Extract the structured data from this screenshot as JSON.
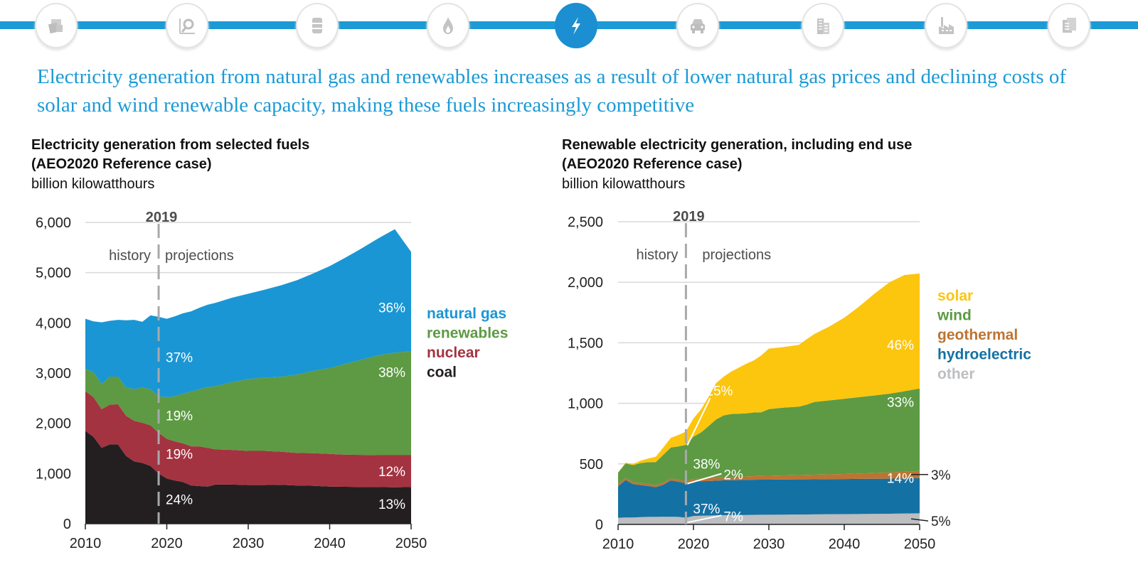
{
  "nav": {
    "icons": [
      {
        "name": "documents-icon",
        "active": false
      },
      {
        "name": "magnifier-chart-icon",
        "active": false
      },
      {
        "name": "oil-barrel-icon",
        "active": false
      },
      {
        "name": "flame-icon",
        "active": false
      },
      {
        "name": "lightning-bolt-icon",
        "active": true
      },
      {
        "name": "car-icon",
        "active": false
      },
      {
        "name": "buildings-icon",
        "active": false
      },
      {
        "name": "factory-icon",
        "active": false
      },
      {
        "name": "report-pages-icon",
        "active": false
      }
    ],
    "accent_color": "#1b9ad6"
  },
  "headline": "Electricity generation from natural gas and renewables increases as a result of lower natural gas prices and declining costs of solar and wind renewable capacity, making these fuels increasingly competitive",
  "chart_data": [
    {
      "type": "area",
      "stacked": true,
      "title": "Electricity generation from selected fuels",
      "subtitle": "(AEO2020 Reference case)",
      "ylabel": "billion kilowatthours",
      "xlabel": "",
      "xlim": [
        2010,
        2050
      ],
      "ylim": [
        0,
        6000
      ],
      "xticks": [
        "2010",
        "2020",
        "2030",
        "2040",
        "2050"
      ],
      "yticks": [
        "0",
        "1,000",
        "2,000",
        "3,000",
        "4,000",
        "5,000",
        "6,000"
      ],
      "grid": true,
      "divider": {
        "year": 2019,
        "label": "2019",
        "left_label": "history",
        "right_label": "projections"
      },
      "legend_placement": "right",
      "x": [
        2010,
        2011,
        2012,
        2013,
        2014,
        2015,
        2016,
        2017,
        2018,
        2019,
        2020,
        2021,
        2022,
        2023,
        2024,
        2025,
        2026,
        2028,
        2030,
        2032,
        2034,
        2036,
        2038,
        2040,
        2042,
        2044,
        2046,
        2048,
        2050
      ],
      "series": [
        {
          "name": "coal",
          "color": "#231f20",
          "values": [
            1850,
            1730,
            1510,
            1580,
            1580,
            1350,
            1240,
            1210,
            1150,
            1000,
            900,
            860,
            830,
            760,
            750,
            740,
            780,
            780,
            770,
            770,
            775,
            760,
            755,
            740,
            735,
            730,
            730,
            725,
            730
          ],
          "labels": [
            {
              "year": 2019,
              "text": "24%"
            },
            {
              "year": 2050,
              "text": "13%"
            }
          ]
        },
        {
          "name": "nuclear",
          "color": "#a33340",
          "values": [
            790,
            790,
            770,
            790,
            800,
            800,
            810,
            800,
            810,
            810,
            790,
            780,
            770,
            780,
            790,
            770,
            700,
            690,
            680,
            680,
            660,
            650,
            650,
            650,
            640,
            640,
            635,
            640,
            635
          ],
          "labels": [
            {
              "year": 2019,
              "text": "19%"
            },
            {
              "year": 2050,
              "text": "12%"
            }
          ]
        },
        {
          "name": "renewables",
          "color": "#5d9a43",
          "values": [
            440,
            500,
            500,
            560,
            550,
            560,
            630,
            700,
            720,
            730,
            830,
            900,
            990,
            1090,
            1140,
            1210,
            1260,
            1350,
            1430,
            1460,
            1490,
            1560,
            1640,
            1710,
            1810,
            1900,
            1990,
            2040,
            2070
          ],
          "labels": [
            {
              "year": 2019,
              "text": "19%"
            },
            {
              "year": 2050,
              "text": "38%"
            }
          ]
        },
        {
          "name": "natural gas",
          "color": "#1a96d4",
          "values": [
            1000,
            1010,
            1230,
            1110,
            1130,
            1340,
            1380,
            1310,
            1470,
            1580,
            1560,
            1590,
            1600,
            1600,
            1620,
            1640,
            1660,
            1680,
            1700,
            1750,
            1820,
            1880,
            1940,
            2030,
            2120,
            2220,
            2330,
            2460,
            1980
          ],
          "labels": [
            {
              "year": 2019,
              "text": "37%"
            },
            {
              "year": 2050,
              "text": "36%"
            }
          ]
        }
      ]
    },
    {
      "type": "area",
      "stacked": true,
      "title": "Renewable electricity generation, including end use",
      "subtitle": "(AEO2020 Reference case)",
      "ylabel": "billion kilowatthours",
      "xlabel": "",
      "xlim": [
        2010,
        2050
      ],
      "ylim": [
        0,
        2500
      ],
      "xticks": [
        "2010",
        "2020",
        "2030",
        "2040",
        "2050"
      ],
      "yticks": [
        "0",
        "500",
        "1,000",
        "1,500",
        "2,000",
        "2,500"
      ],
      "grid": true,
      "divider": {
        "year": 2019,
        "label": "2019",
        "left_label": "history",
        "right_label": "projections"
      },
      "legend_placement": "right",
      "x": [
        2010,
        2011,
        2012,
        2013,
        2014,
        2015,
        2016,
        2017,
        2018,
        2019,
        2020,
        2021,
        2022,
        2023,
        2024,
        2025,
        2026,
        2027,
        2028,
        2029,
        2030,
        2032,
        2034,
        2035,
        2036,
        2038,
        2040,
        2042,
        2044,
        2046,
        2048,
        2050
      ],
      "series": [
        {
          "name": "other",
          "color": "#bcbec0",
          "values": [
            55,
            57,
            57,
            60,
            62,
            62,
            63,
            63,
            62,
            55,
            70,
            72,
            73,
            75,
            76,
            77,
            78,
            78,
            79,
            80,
            80,
            81,
            82,
            82,
            83,
            84,
            85,
            86,
            87,
            88,
            90,
            92
          ],
          "labels": [
            {
              "year": 2019,
              "text": "7%",
              "callout": true
            },
            {
              "year": 2050,
              "text": "5%",
              "callout": true,
              "outside": true
            }
          ]
        },
        {
          "name": "hydroelectric",
          "color": "#1471a3",
          "values": [
            260,
            310,
            275,
            265,
            255,
            245,
            265,
            300,
            290,
            285,
            285,
            285,
            285,
            287,
            288,
            288,
            288,
            290,
            290,
            290,
            290,
            290,
            290,
            290,
            290,
            290,
            290,
            290,
            290,
            290,
            290,
            290
          ],
          "labels": [
            {
              "year": 2019,
              "text": "37%"
            },
            {
              "year": 2050,
              "text": "14%"
            }
          ]
        },
        {
          "name": "geothermal",
          "color": "#bd7432",
          "values": [
            17,
            17,
            17,
            17,
            17,
            17,
            17,
            17,
            17,
            17,
            20,
            22,
            24,
            25,
            26,
            27,
            28,
            29,
            30,
            31,
            32,
            34,
            36,
            37,
            38,
            40,
            42,
            45,
            48,
            52,
            55,
            60
          ],
          "labels": [
            {
              "year": 2019,
              "text": "2%",
              "callout": true
            },
            {
              "year": 2050,
              "text": "3%",
              "callout": true,
              "outside": true
            }
          ]
        },
        {
          "name": "wind",
          "color": "#5d9a43",
          "values": [
            95,
            120,
            140,
            165,
            180,
            190,
            230,
            255,
            275,
            300,
            350,
            380,
            430,
            480,
            510,
            520,
            520,
            520,
            525,
            525,
            550,
            560,
            565,
            580,
            600,
            610,
            620,
            630,
            640,
            650,
            665,
            680
          ],
          "labels": [
            {
              "year": 2019,
              "text": "38%"
            },
            {
              "year": 2050,
              "text": "33%"
            }
          ]
        },
        {
          "name": "solar",
          "color": "#fcc50e",
          "values": [
            3,
            5,
            10,
            20,
            30,
            45,
            60,
            80,
            95,
            110,
            150,
            190,
            240,
            300,
            320,
            350,
            380,
            410,
            430,
            470,
            500,
            500,
            510,
            540,
            560,
            610,
            670,
            750,
            840,
            920,
            960,
            950
          ],
          "labels": [
            {
              "year": 2019,
              "text": "15%",
              "callout": true
            },
            {
              "year": 2050,
              "text": "46%"
            }
          ]
        }
      ]
    }
  ]
}
